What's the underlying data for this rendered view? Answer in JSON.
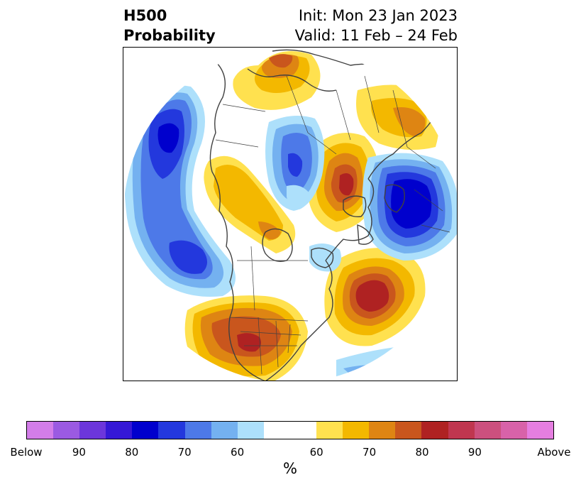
{
  "title": {
    "left_line1": "H500",
    "left_line2": "Probability",
    "right_line1": "Init: Mon 23 Jan 2023",
    "right_line2": "Valid: 11 Feb – 24 Feb"
  },
  "colorbar": {
    "unit": "%",
    "segments": [
      {
        "color": "#d37de9",
        "category": "below"
      },
      {
        "color": "#9b5ae2",
        "category": "below"
      },
      {
        "color": "#6c36db",
        "category": "below"
      },
      {
        "color": "#3518d6",
        "category": "below"
      },
      {
        "color": "#0000cd",
        "category": "below"
      },
      {
        "color": "#2338dd",
        "category": "below"
      },
      {
        "color": "#4d79e8",
        "category": "below"
      },
      {
        "color": "#74b1f0",
        "category": "below"
      },
      {
        "color": "#ade0fb",
        "category": "below"
      },
      {
        "color": "#ffffff",
        "category": "near-normal"
      },
      {
        "color": "#ffffff",
        "category": "near-normal"
      },
      {
        "color": "#ffe14f",
        "category": "above"
      },
      {
        "color": "#f3b800",
        "category": "above"
      },
      {
        "color": "#de8513",
        "category": "above"
      },
      {
        "color": "#c9561d",
        "category": "above"
      },
      {
        "color": "#af2222",
        "category": "above"
      },
      {
        "color": "#c0364f",
        "category": "above"
      },
      {
        "color": "#cc507e",
        "category": "above"
      },
      {
        "color": "#d862a9",
        "category": "above"
      },
      {
        "color": "#e57ee0",
        "category": "above"
      }
    ],
    "tick_labels": [
      "Below",
      "90",
      "80",
      "70",
      "60",
      "60",
      "70",
      "80",
      "90",
      "Above"
    ]
  },
  "map": {
    "projection": "north-polar-stereographic",
    "anomalies": [
      {
        "sign": "below",
        "peak": "80",
        "region": "North Pacific (west)"
      },
      {
        "sign": "below",
        "peak": "70",
        "region": "North Pacific (south of Alaska)"
      },
      {
        "sign": "below",
        "peak": "70",
        "region": "Eastern Siberia"
      },
      {
        "sign": "below",
        "peak": "80",
        "region": "Scandinavia / Northern Europe"
      },
      {
        "sign": "above",
        "peak": "80",
        "region": "Western Russia / Urals"
      },
      {
        "sign": "above",
        "peak": "80",
        "region": "North Atlantic"
      },
      {
        "sign": "above",
        "peak": "80",
        "region": "Southwestern United States"
      },
      {
        "sign": "above",
        "peak": "70",
        "region": "East Asia"
      },
      {
        "sign": "above",
        "peak": "70",
        "region": "Central Asia"
      }
    ]
  }
}
